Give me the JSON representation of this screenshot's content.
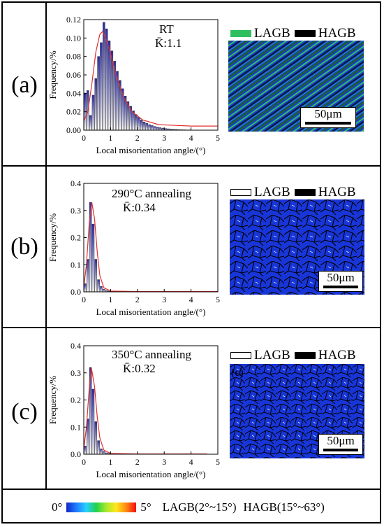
{
  "footer": {
    "scale_min": "0°",
    "scale_max": "5°",
    "lagb_def": "LAGB(2°~15°)",
    "hagb_def": "HAGB(15°~63°)"
  },
  "panels": [
    {
      "label": "(a)",
      "annotation_line1": "RT",
      "annotation_line2": "K̄:1.1",
      "legend_lagb": "LAGB",
      "legend_hagb": "HAGB",
      "scale_bar": "50μm",
      "map_overlay": ""
    },
    {
      "label": "(b)",
      "annotation_line1": "290°C annealing",
      "annotation_line2": "K̄:0.34",
      "legend_lagb": "LAGB",
      "legend_hagb": "HAGB",
      "scale_bar": "50μm",
      "map_overlay": ""
    },
    {
      "label": "(c)",
      "annotation_line1": "350°C annealing",
      "annotation_line2": "K̄:0.32",
      "legend_lagb": "LAGB",
      "legend_hagb": "HAGB",
      "scale_bar": "50μm",
      "map_overlay": "(c)"
    }
  ],
  "chart_data": [
    {
      "type": "bar",
      "xlabel": "Local misorientation angle/(°)",
      "ylabel": "Frequency/%",
      "xlim": [
        0,
        5
      ],
      "ylim": [
        0,
        0.12
      ],
      "xticks": [
        "0",
        "1",
        "2",
        "3",
        "4",
        "5"
      ],
      "yticks": [
        "0.00",
        "0.02",
        "0.04",
        "0.06",
        "0.08",
        "0.10",
        "0.12"
      ],
      "bin_width": 0.1,
      "values": [
        0.04,
        0.043,
        0.016,
        0.038,
        0.056,
        0.08,
        0.095,
        0.117,
        0.11,
        0.097,
        0.086,
        0.075,
        0.064,
        0.054,
        0.045,
        0.037,
        0.031,
        0.026,
        0.021,
        0.017,
        0.014,
        0.011,
        0.009,
        0.0075,
        0.006,
        0.005,
        0.004,
        0.0033,
        0.0027,
        0.0022,
        0.0018,
        0.0015,
        0.0012,
        0.001,
        0.0008,
        0.0006,
        0.0005,
        0.0004,
        0.0003,
        0.0003
      ],
      "fit_curve": [
        [
          0,
          0.01
        ],
        [
          0.15,
          0.02
        ],
        [
          0.3,
          0.05
        ],
        [
          0.45,
          0.085
        ],
        [
          0.6,
          0.104
        ],
        [
          0.7,
          0.107
        ],
        [
          0.8,
          0.101
        ],
        [
          0.95,
          0.088
        ],
        [
          1.2,
          0.06
        ],
        [
          1.5,
          0.035
        ],
        [
          1.8,
          0.02
        ],
        [
          2.2,
          0.011
        ],
        [
          2.8,
          0.006
        ],
        [
          4,
          0.0045
        ],
        [
          5,
          0.0045
        ]
      ],
      "fit_color": "#e03030"
    },
    {
      "type": "bar",
      "xlabel": "Local misorientation angle/(°)",
      "ylabel": "Frequency/%",
      "xlim": [
        0,
        5
      ],
      "ylim": [
        0,
        0.4
      ],
      "xticks": [
        "0",
        "1",
        "2",
        "3",
        "4",
        "5"
      ],
      "yticks": [
        "0.0",
        "0.1",
        "0.2",
        "0.3",
        "0.4"
      ],
      "bin_width": 0.1,
      "values": [
        0.03,
        0.12,
        0.33,
        0.25,
        0.12,
        0.045,
        0.02,
        0.01,
        0.005,
        0.003,
        0.002,
        0.001
      ],
      "fit_curve": [
        [
          0,
          0.02
        ],
        [
          0.1,
          0.1
        ],
        [
          0.2,
          0.25
        ],
        [
          0.3,
          0.33
        ],
        [
          0.4,
          0.27
        ],
        [
          0.5,
          0.15
        ],
        [
          0.6,
          0.06
        ],
        [
          0.75,
          0.015
        ],
        [
          1,
          0.003
        ],
        [
          2,
          0.001
        ],
        [
          5,
          0.001
        ]
      ],
      "fit_color": "#e03030"
    },
    {
      "type": "bar",
      "xlabel": "Local misorientation angle/(°)",
      "ylabel": "Frequency/%",
      "xlim": [
        0,
        5
      ],
      "ylim": [
        0,
        0.4
      ],
      "xticks": [
        "0",
        "1",
        "2",
        "3",
        "4",
        "5"
      ],
      "yticks": [
        "0.0",
        "0.1",
        "0.2",
        "0.3",
        "0.4"
      ],
      "bin_width": 0.1,
      "values": [
        0.03,
        0.13,
        0.32,
        0.24,
        0.12,
        0.05,
        0.02,
        0.01,
        0.005,
        0.003,
        0.002,
        0.001
      ],
      "fit_curve": [
        [
          0,
          0.02
        ],
        [
          0.1,
          0.1
        ],
        [
          0.2,
          0.24
        ],
        [
          0.28,
          0.32
        ],
        [
          0.4,
          0.25
        ],
        [
          0.5,
          0.14
        ],
        [
          0.6,
          0.06
        ],
        [
          0.75,
          0.015
        ],
        [
          1,
          0.003
        ],
        [
          2,
          0.001
        ],
        [
          4.6,
          0.001
        ]
      ],
      "fit_color": "#e03030"
    }
  ],
  "colors": {
    "lagb_panel_a": "#2fbf5f",
    "hagb": "#000000",
    "bar_top": "#2a2aa8",
    "bar_bottom": "#ffffff",
    "map_base": "#1a3ad6"
  }
}
